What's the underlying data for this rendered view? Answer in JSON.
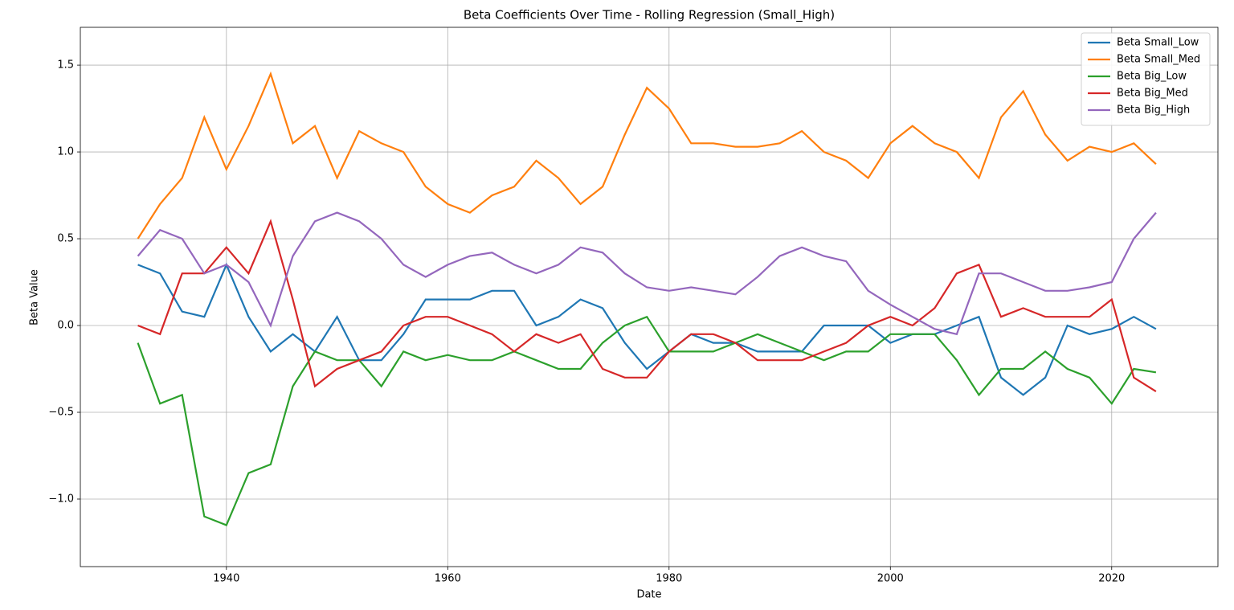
{
  "chart_data": {
    "type": "line",
    "title": "Beta Coefficients Over Time - Rolling Regression (Small_High)",
    "x_label": "Date",
    "y_label": "Beta Value",
    "x": [
      1932,
      1934,
      1936,
      1938,
      1940,
      1942,
      1944,
      1946,
      1948,
      1950,
      1952,
      1954,
      1956,
      1958,
      1960,
      1962,
      1964,
      1966,
      1968,
      1970,
      1972,
      1974,
      1976,
      1978,
      1980,
      1982,
      1984,
      1986,
      1988,
      1990,
      1992,
      1994,
      1996,
      1998,
      2000,
      2002,
      2004,
      2006,
      2008,
      2010,
      2012,
      2014,
      2016,
      2018,
      2020,
      2022,
      2024
    ],
    "series": [
      {
        "name": "Beta Small_Low",
        "color": "#1f77b4",
        "values": [
          0.35,
          0.3,
          0.08,
          0.05,
          0.35,
          0.05,
          -0.15,
          -0.05,
          -0.15,
          0.05,
          -0.2,
          -0.2,
          -0.05,
          0.15,
          0.15,
          0.15,
          0.2,
          0.2,
          0.0,
          0.05,
          0.15,
          0.1,
          -0.1,
          -0.25,
          -0.15,
          -0.05,
          -0.1,
          -0.1,
          -0.15,
          -0.15,
          -0.15,
          0.0,
          0.0,
          0.0,
          -0.1,
          -0.05,
          -0.05,
          0.0,
          0.05,
          -0.3,
          -0.4,
          -0.3,
          0.0,
          -0.05,
          -0.02,
          0.05,
          -0.02
        ]
      },
      {
        "name": "Beta Small_Med",
        "color": "#ff7f0e",
        "values": [
          0.5,
          0.7,
          0.85,
          1.2,
          0.9,
          1.15,
          1.45,
          1.05,
          1.15,
          0.85,
          1.12,
          1.05,
          1.0,
          0.8,
          0.7,
          0.65,
          0.75,
          0.8,
          0.95,
          0.85,
          0.7,
          0.8,
          1.1,
          1.37,
          1.25,
          1.05,
          1.05,
          1.03,
          1.03,
          1.05,
          1.12,
          1.0,
          0.95,
          0.85,
          1.05,
          1.15,
          1.05,
          1.0,
          0.85,
          1.2,
          1.35,
          1.1,
          0.95,
          1.03,
          1.0,
          1.05,
          0.93
        ]
      },
      {
        "name": "Beta Big_Low",
        "color": "#2ca02c",
        "values": [
          -0.1,
          -0.45,
          -0.4,
          -1.1,
          -1.15,
          -0.85,
          -0.8,
          -0.35,
          -0.15,
          -0.2,
          -0.2,
          -0.35,
          -0.15,
          -0.2,
          -0.17,
          -0.2,
          -0.2,
          -0.15,
          -0.2,
          -0.25,
          -0.25,
          -0.1,
          0.0,
          0.05,
          -0.15,
          -0.15,
          -0.15,
          -0.1,
          -0.05,
          -0.1,
          -0.15,
          -0.2,
          -0.15,
          -0.15,
          -0.05,
          -0.05,
          -0.05,
          -0.2,
          -0.4,
          -0.25,
          -0.25,
          -0.15,
          -0.25,
          -0.3,
          -0.45,
          -0.25,
          -0.27
        ]
      },
      {
        "name": "Beta Big_Med",
        "color": "#d62728",
        "values": [
          0.0,
          -0.05,
          0.3,
          0.3,
          0.45,
          0.3,
          0.6,
          0.15,
          -0.35,
          -0.25,
          -0.2,
          -0.15,
          0.0,
          0.05,
          0.05,
          0.0,
          -0.05,
          -0.15,
          -0.05,
          -0.1,
          -0.05,
          -0.25,
          -0.3,
          -0.3,
          -0.15,
          -0.05,
          -0.05,
          -0.1,
          -0.2,
          -0.2,
          -0.2,
          -0.15,
          -0.1,
          0.0,
          0.05,
          0.0,
          0.1,
          0.3,
          0.35,
          0.05,
          0.1,
          0.05,
          0.05,
          0.05,
          0.15,
          -0.3,
          -0.38
        ]
      },
      {
        "name": "Beta Big_High",
        "color": "#9467bd",
        "values": [
          0.4,
          0.55,
          0.5,
          0.3,
          0.35,
          0.25,
          0.0,
          0.4,
          0.6,
          0.65,
          0.6,
          0.5,
          0.35,
          0.28,
          0.35,
          0.4,
          0.42,
          0.35,
          0.3,
          0.35,
          0.45,
          0.42,
          0.3,
          0.22,
          0.2,
          0.22,
          0.2,
          0.18,
          0.28,
          0.4,
          0.45,
          0.4,
          0.37,
          0.2,
          0.12,
          0.05,
          -0.02,
          -0.05,
          0.3,
          0.3,
          0.25,
          0.2,
          0.2,
          0.22,
          0.25,
          0.5,
          0.65
        ]
      }
    ],
    "xlim": [
      1926.8,
      2029.6
    ],
    "xticks": [
      1940,
      1960,
      1980,
      2000,
      2020
    ],
    "ylim": [
      -1.389,
      1.718
    ],
    "yticks": [
      {
        "value": -1.0,
        "label": "−1.0"
      },
      {
        "value": -0.5,
        "label": "−0.5"
      },
      {
        "value": 0,
        "label": "0.0"
      },
      0.5,
      {
        "value": 1.0,
        "label": "1.0"
      },
      1.5
    ],
    "grid": true,
    "legend": "upper right"
  }
}
